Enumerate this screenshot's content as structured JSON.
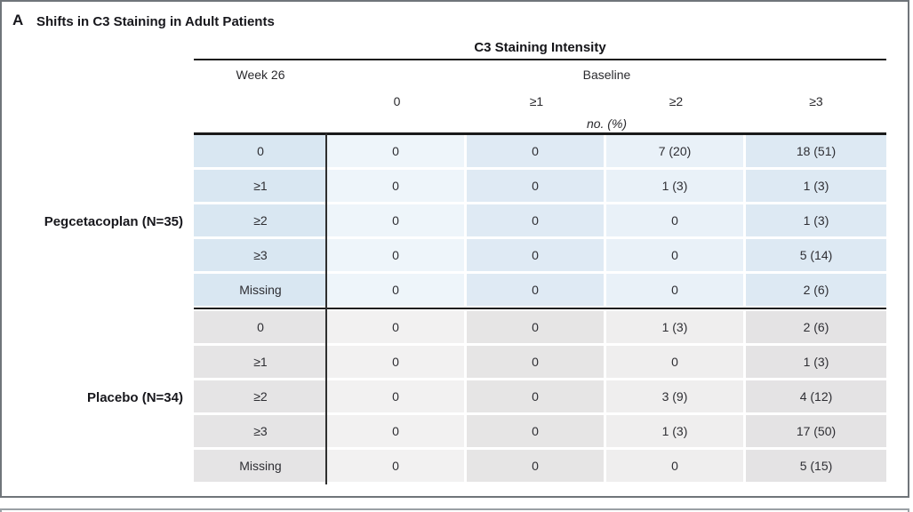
{
  "panel": {
    "label": "A",
    "title": "Shifts in C3 Staining in Adult Patients"
  },
  "table": {
    "title": "C3 Staining Intensity",
    "row_axis_label": "Week 26",
    "col_axis_label": "Baseline",
    "unit_label": "no. (%)",
    "baseline_levels": [
      "0",
      "≥1",
      "≥2",
      "≥3"
    ],
    "sections": [
      {
        "group": "Pegcetacoplan (N=35)",
        "theme": "blue",
        "rows": [
          {
            "label": "0",
            "cells": [
              "0",
              "0",
              "7 (20)",
              "18 (51)"
            ]
          },
          {
            "label": "≥1",
            "cells": [
              "0",
              "0",
              "1 (3)",
              "1 (3)"
            ]
          },
          {
            "label": "≥2",
            "cells": [
              "0",
              "0",
              "0",
              "1 (3)"
            ]
          },
          {
            "label": "≥3",
            "cells": [
              "0",
              "0",
              "0",
              "5 (14)"
            ]
          },
          {
            "label": "Missing",
            "cells": [
              "0",
              "0",
              "0",
              "2 (6)"
            ]
          }
        ]
      },
      {
        "group": "Placebo (N=34)",
        "theme": "gray",
        "rows": [
          {
            "label": "0",
            "cells": [
              "0",
              "0",
              "1 (3)",
              "2 (6)"
            ]
          },
          {
            "label": "≥1",
            "cells": [
              "0",
              "0",
              "0",
              "1 (3)"
            ]
          },
          {
            "label": "≥2",
            "cells": [
              "0",
              "0",
              "3 (9)",
              "4 (12)"
            ]
          },
          {
            "label": "≥3",
            "cells": [
              "0",
              "0",
              "1 (3)",
              "17 (50)"
            ]
          },
          {
            "label": "Missing",
            "cells": [
              "0",
              "0",
              "0",
              "5 (15)"
            ]
          }
        ]
      }
    ],
    "colors": {
      "pegcetacoplan_label_bg": "#d9e7f2",
      "pegcetacoplan_col_bgs": [
        "#eef5fa",
        "#dfeaf4",
        "#e9f1f8",
        "#dde9f3"
      ],
      "placebo_label_bg": "#e5e4e5",
      "placebo_col_bgs": [
        "#f2f1f1",
        "#e6e5e5",
        "#efeeee",
        "#e4e3e4"
      ],
      "rule_color": "#1c1c1c",
      "panel_border": "#70757a",
      "text_color": "#2e2e33"
    }
  }
}
